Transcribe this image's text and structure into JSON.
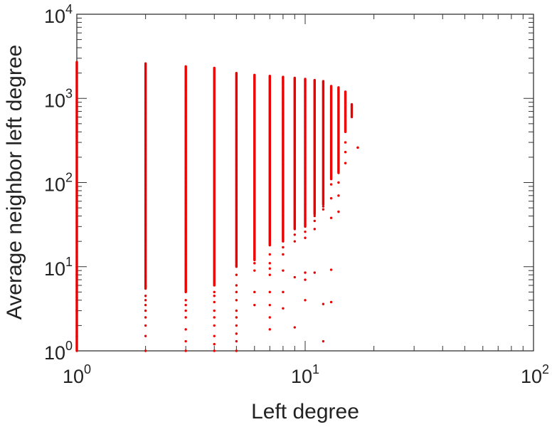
{
  "chart_data": {
    "type": "scatter",
    "xlabel": "Left degree",
    "ylabel": "Average neighbor left degree",
    "xscale": "log",
    "yscale": "log",
    "xlim": [
      1,
      100
    ],
    "ylim": [
      1,
      10000
    ],
    "x_tick_labels": [
      {
        "base": "10",
        "exp": "0",
        "value": 1
      },
      {
        "base": "10",
        "exp": "1",
        "value": 10
      },
      {
        "base": "10",
        "exp": "2",
        "value": 100
      }
    ],
    "y_tick_labels": [
      {
        "base": "10",
        "exp": "0",
        "value": 1
      },
      {
        "base": "10",
        "exp": "1",
        "value": 10
      },
      {
        "base": "10",
        "exp": "2",
        "value": 100
      },
      {
        "base": "10",
        "exp": "3",
        "value": 1000
      },
      {
        "base": "10",
        "exp": "4",
        "value": 10000
      }
    ],
    "grid": false,
    "point_color": "#ee0000",
    "columns": [
      {
        "x": 1,
        "ymin": 1,
        "ymax": 2700,
        "extra": [
          1.5,
          2,
          3,
          4,
          5,
          6,
          8,
          10
        ]
      },
      {
        "x": 2,
        "ymin": 5.5,
        "ymax": 2600,
        "extra": [
          1,
          1.5,
          2,
          2.5,
          3,
          3.5,
          4,
          4.5
        ]
      },
      {
        "x": 3,
        "ymin": 5,
        "ymax": 2400,
        "extra": [
          1,
          1.3,
          1.8,
          2.5,
          3,
          3.5,
          4
        ]
      },
      {
        "x": 4,
        "ymin": 6,
        "ymax": 2300,
        "extra": [
          1,
          1.2,
          1.5,
          2,
          2.5,
          3,
          3.8,
          4.5,
          5
        ]
      },
      {
        "x": 5,
        "ymin": 10,
        "ymax": 2000,
        "extra": [
          1,
          1.3,
          1.6,
          2,
          2.5,
          3,
          4,
          5,
          6,
          8
        ]
      },
      {
        "x": 6,
        "ymin": 12,
        "ymax": 1900,
        "extra": [
          3.5,
          5,
          9,
          11
        ]
      },
      {
        "x": 7,
        "ymin": 18,
        "ymax": 1850,
        "extra": [
          1.8,
          2.5,
          3.5,
          5,
          8,
          9.5,
          11,
          14
        ]
      },
      {
        "x": 8,
        "ymin": 20,
        "ymax": 1800,
        "extra": [
          3.2,
          5,
          9,
          14,
          17
        ]
      },
      {
        "x": 9,
        "ymin": 28,
        "ymax": 1750,
        "extra": [
          1.9,
          7.5,
          20,
          24
        ]
      },
      {
        "x": 10,
        "ymin": 30,
        "ymax": 1700,
        "extra": [
          4,
          7,
          8.5,
          22,
          26
        ]
      },
      {
        "x": 11,
        "ymin": 42,
        "ymax": 1650,
        "extra": [
          8.5,
          28,
          35,
          40
        ]
      },
      {
        "x": 12,
        "ymin": 55,
        "ymax": 1600,
        "extra": [
          1.3,
          3.6,
          48,
          52
        ]
      },
      {
        "x": 13,
        "ymin": 110,
        "ymax": 1400,
        "extra": [
          3.8,
          9.2,
          38,
          65,
          95
        ]
      },
      {
        "x": 14,
        "ymin": 130,
        "ymax": 1350,
        "extra": [
          45,
          70,
          100
        ]
      },
      {
        "x": 15,
        "ymin": 400,
        "ymax": 1200,
        "extra": [
          170,
          230,
          300
        ]
      },
      {
        "x": 16,
        "ymin": 600,
        "ymax": 850,
        "extra": []
      },
      {
        "x": 17,
        "ymin": 260,
        "ymax": 260,
        "extra": []
      }
    ]
  }
}
